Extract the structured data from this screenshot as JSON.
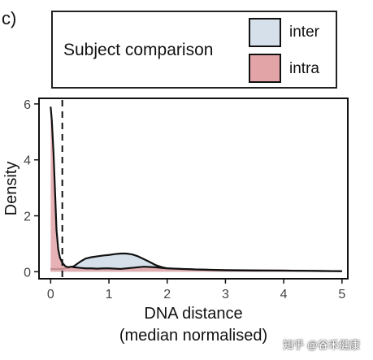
{
  "panel_label": "c)",
  "legend": {
    "title": "Subject comparison",
    "entries": [
      {
        "name": "inter",
        "color": "#d5e0ea"
      },
      {
        "name": "intra",
        "color": "#e3a4a8"
      }
    ]
  },
  "chart_data": {
    "type": "area",
    "xlabel": "DNA distance",
    "xlabel2": "(median normalised)",
    "ylabel": "Density",
    "xlim": [
      -0.2,
      5.1
    ],
    "ylim": [
      -0.25,
      6.2
    ],
    "xticks": [
      0,
      1,
      2,
      3,
      4,
      5
    ],
    "yticks": [
      0,
      2,
      4,
      6
    ],
    "grid": false,
    "threshold_line_x": 0.2,
    "series": [
      {
        "name": "inter",
        "color": "#d5e0ea",
        "x": [
          0.0,
          0.2,
          0.3,
          0.4,
          0.5,
          0.6,
          0.7,
          0.8,
          0.9,
          1.0,
          1.1,
          1.2,
          1.3,
          1.4,
          1.5,
          1.6,
          1.7,
          1.8,
          1.9,
          2.0,
          2.2,
          2.5,
          3.0,
          3.5,
          4.0,
          4.5,
          5.0
        ],
        "y": [
          0.1,
          0.1,
          0.14,
          0.2,
          0.35,
          0.47,
          0.52,
          0.55,
          0.58,
          0.6,
          0.63,
          0.65,
          0.65,
          0.62,
          0.55,
          0.45,
          0.35,
          0.24,
          0.17,
          0.12,
          0.1,
          0.08,
          0.06,
          0.05,
          0.04,
          0.03,
          0.02
        ]
      },
      {
        "name": "intra",
        "color": "#e3a4a8",
        "x": [
          0.0,
          0.02,
          0.05,
          0.08,
          0.1,
          0.13,
          0.16,
          0.2,
          0.25,
          0.3,
          0.35,
          0.4,
          0.5,
          0.6,
          0.7,
          0.8,
          0.9,
          1.0,
          1.2,
          1.4,
          1.6,
          1.8,
          2.0,
          2.5,
          3.0,
          3.5,
          4.0,
          4.5,
          5.0
        ],
        "y": [
          5.9,
          5.4,
          4.2,
          2.6,
          1.5,
          0.8,
          0.5,
          0.32,
          0.2,
          0.16,
          0.18,
          0.16,
          0.14,
          0.12,
          0.12,
          0.11,
          0.12,
          0.12,
          0.1,
          0.14,
          0.18,
          0.16,
          0.12,
          0.08,
          0.05,
          0.04,
          0.04,
          0.03,
          0.02
        ]
      }
    ]
  },
  "watermark": "知乎 @谷禾健康"
}
